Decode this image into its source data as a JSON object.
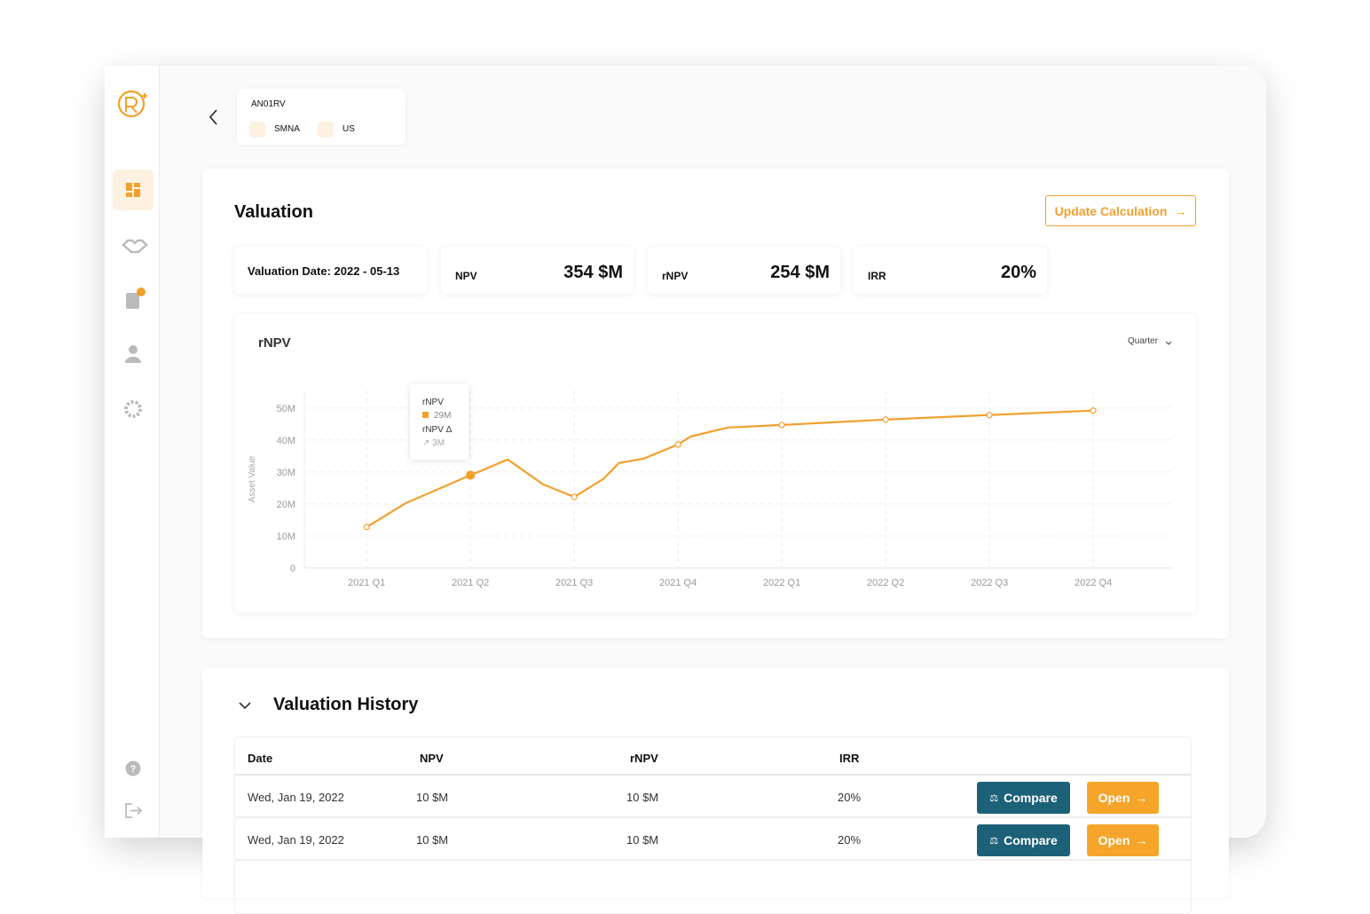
{
  "header": {
    "code": "AN01RV",
    "tags": [
      "SMNA",
      "US"
    ]
  },
  "valuation": {
    "title": "Valuation",
    "button": "Update Calculation",
    "date_label": "Valuation Date: 2022 - 05-13",
    "metrics": [
      {
        "label": "NPV",
        "value": "354 $M"
      },
      {
        "label": "rNPV",
        "value": "254 $M"
      },
      {
        "label": "IRR",
        "value": "20%"
      }
    ]
  },
  "chart_data": {
    "type": "line",
    "title": "rNPV",
    "period": "Quarter",
    "y_label": "Asset Value",
    "color": "#f2a02c",
    "x": [
      0,
      0.38,
      1,
      1.36,
      1.7,
      2,
      2.28,
      2.43,
      2.67,
      3,
      3.12,
      3.48,
      4,
      5,
      6,
      7
    ],
    "values": [
      12.8,
      20.3,
      29,
      33.9,
      26.1,
      22.2,
      27.8,
      32.8,
      34.2,
      38.6,
      41.1,
      43.9,
      44.7,
      46.4,
      47.8,
      49.2
    ],
    "value_labels": [
      null,
      null,
      "29M",
      null,
      null,
      null,
      null,
      null,
      null,
      null,
      null,
      null,
      null,
      null,
      null,
      null
    ],
    "highlight": 2,
    "markers": [
      0,
      2,
      5,
      9,
      12,
      13,
      14,
      15
    ],
    "tooltip": {
      "name": "rNPV",
      "delta_name": "rNPV Δ",
      "delta": "3M"
    },
    "xlim": [
      -0.6,
      7.76
    ],
    "xticks": [
      {
        "value": 0,
        "label": "2021 Q1"
      },
      {
        "value": 1,
        "label": "2021 Q2"
      },
      {
        "value": 2,
        "label": "2021 Q3"
      },
      {
        "value": 3,
        "label": "2021 Q4"
      },
      {
        "value": 4,
        "label": "2022 Q1"
      },
      {
        "value": 5,
        "label": "2022 Q2"
      },
      {
        "value": 6,
        "label": "2022 Q3"
      },
      {
        "value": 7,
        "label": "2022 Q4"
      }
    ],
    "ylim": [
      0,
      55.5
    ],
    "yticks": [
      0,
      {
        "value": 10,
        "label": "10M"
      },
      {
        "value": 20,
        "label": "20M"
      },
      {
        "value": 30,
        "label": "30M"
      },
      {
        "value": 40,
        "label": "40M"
      },
      {
        "value": 50,
        "label": "50M"
      }
    ],
    "grid": true
  },
  "history": {
    "title": "Valuation History",
    "columns": [
      "Date",
      "NPV",
      "rNPV",
      "IRR"
    ],
    "rows": [
      [
        "Wed, Jan 19, 2022",
        "10 $M",
        "10 $M",
        "20%"
      ],
      [
        "Wed, Jan 19, 2022",
        "10 $M",
        "10 $M",
        "20%"
      ]
    ],
    "actions": [
      "Compare",
      "Open"
    ]
  }
}
